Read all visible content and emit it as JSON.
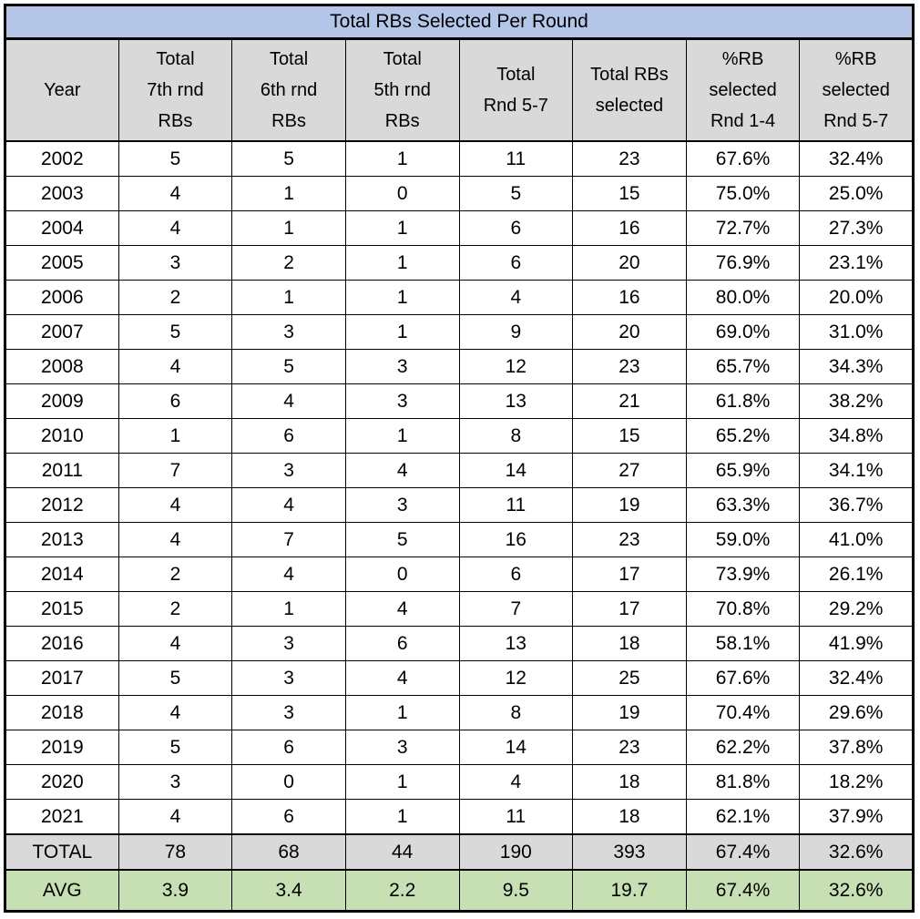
{
  "title": "Total RBs Selected Per Round",
  "colors": {
    "title_bg": "#B4C6E7",
    "header_bg": "#D9D9D9",
    "total_row_bg": "#D9D9D9",
    "avg_row_bg": "#C6E0B4",
    "border": "#000000",
    "text": "#000000",
    "row_bg": "#FFFFFF"
  },
  "chart_data": {
    "type": "table",
    "title": "Total RBs Selected Per Round",
    "columns": [
      "Year",
      "Total\n7th rnd\nRBs",
      "Total\n6th rnd\nRBs",
      "Total\n5th rnd\nRBs",
      "Total\nRnd 5-7",
      "Total RBs\nselected",
      "%RB\nselected\nRnd 1-4",
      "%RB\nselected\nRnd 5-7"
    ],
    "rows": [
      [
        "2002",
        "5",
        "5",
        "1",
        "11",
        "23",
        "67.6%",
        "32.4%"
      ],
      [
        "2003",
        "4",
        "1",
        "0",
        "5",
        "15",
        "75.0%",
        "25.0%"
      ],
      [
        "2004",
        "4",
        "1",
        "1",
        "6",
        "16",
        "72.7%",
        "27.3%"
      ],
      [
        "2005",
        "3",
        "2",
        "1",
        "6",
        "20",
        "76.9%",
        "23.1%"
      ],
      [
        "2006",
        "2",
        "1",
        "1",
        "4",
        "16",
        "80.0%",
        "20.0%"
      ],
      [
        "2007",
        "5",
        "3",
        "1",
        "9",
        "20",
        "69.0%",
        "31.0%"
      ],
      [
        "2008",
        "4",
        "5",
        "3",
        "12",
        "23",
        "65.7%",
        "34.3%"
      ],
      [
        "2009",
        "6",
        "4",
        "3",
        "13",
        "21",
        "61.8%",
        "38.2%"
      ],
      [
        "2010",
        "1",
        "6",
        "1",
        "8",
        "15",
        "65.2%",
        "34.8%"
      ],
      [
        "2011",
        "7",
        "3",
        "4",
        "14",
        "27",
        "65.9%",
        "34.1%"
      ],
      [
        "2012",
        "4",
        "4",
        "3",
        "11",
        "19",
        "63.3%",
        "36.7%"
      ],
      [
        "2013",
        "4",
        "7",
        "5",
        "16",
        "23",
        "59.0%",
        "41.0%"
      ],
      [
        "2014",
        "2",
        "4",
        "0",
        "6",
        "17",
        "73.9%",
        "26.1%"
      ],
      [
        "2015",
        "2",
        "1",
        "4",
        "7",
        "17",
        "70.8%",
        "29.2%"
      ],
      [
        "2016",
        "4",
        "3",
        "6",
        "13",
        "18",
        "58.1%",
        "41.9%"
      ],
      [
        "2017",
        "5",
        "3",
        "4",
        "12",
        "25",
        "67.6%",
        "32.4%"
      ],
      [
        "2018",
        "4",
        "3",
        "1",
        "8",
        "19",
        "70.4%",
        "29.6%"
      ],
      [
        "2019",
        "5",
        "6",
        "3",
        "14",
        "23",
        "62.2%",
        "37.8%"
      ],
      [
        "2020",
        "3",
        "0",
        "1",
        "4",
        "18",
        "81.8%",
        "18.2%"
      ],
      [
        "2021",
        "4",
        "6",
        "1",
        "11",
        "18",
        "62.1%",
        "37.9%"
      ]
    ],
    "total_row": [
      "TOTAL",
      "78",
      "68",
      "44",
      "190",
      "393",
      "67.4%",
      "32.6%"
    ],
    "avg_row": [
      "AVG",
      "3.9",
      "3.4",
      "2.2",
      "9.5",
      "19.7",
      "67.4%",
      "32.6%"
    ]
  }
}
